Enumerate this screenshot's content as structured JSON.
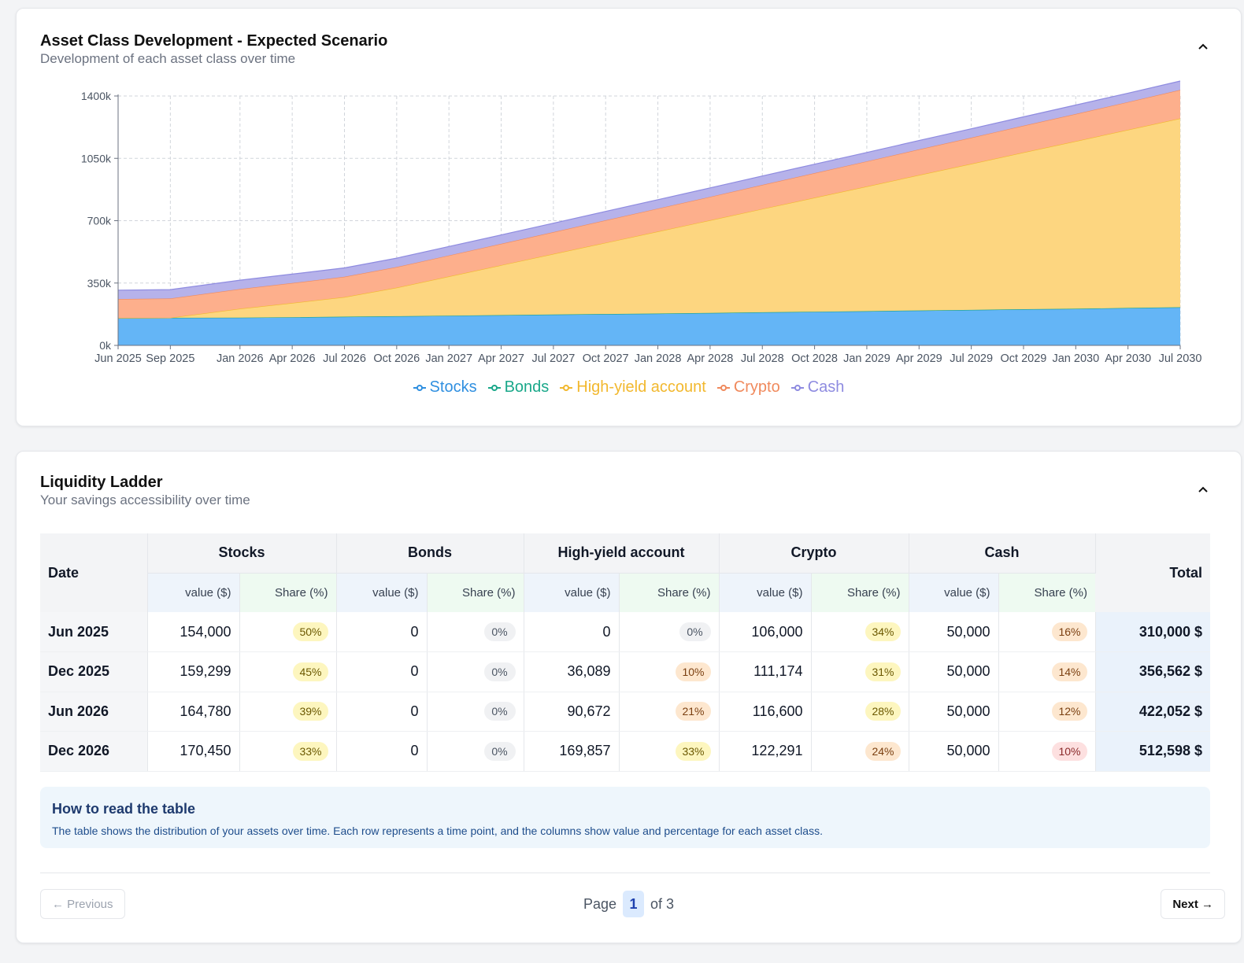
{
  "chart_card": {
    "title": "Asset Class Development - Expected Scenario",
    "subtitle": "Development of each asset class over time"
  },
  "chart_data": {
    "type": "area",
    "stacked": true,
    "x_labels": [
      "Jun 2025",
      "Sep 2025",
      "Jan 2026",
      "Apr 2026",
      "Jul 2026",
      "Oct 2026",
      "Jan 2027",
      "Apr 2027",
      "Jul 2027",
      "Oct 2027",
      "Jan 2028",
      "Apr 2028",
      "Jul 2028",
      "Oct 2028",
      "Jan 2029",
      "Apr 2029",
      "Jul 2029",
      "Oct 2029",
      "Jan 2030",
      "Apr 2030",
      "Jul 2030"
    ],
    "x_months": [
      0,
      3,
      7,
      10,
      13,
      16,
      19,
      22,
      25,
      28,
      31,
      34,
      37,
      40,
      43,
      46,
      49,
      52,
      55,
      58,
      61
    ],
    "ylim": [
      0,
      1400000
    ],
    "y_ticks": [
      0,
      350000,
      700000,
      1050000,
      1400000
    ],
    "y_tick_labels": [
      "0k",
      "350k",
      "700k",
      "1050k",
      "1400k"
    ],
    "grid": true,
    "legend": "bottom",
    "series": [
      {
        "name": "Stocks",
        "color": "#2f8fe0",
        "fill": "#64b5f6",
        "values": [
          154000,
          155000,
          156000,
          158000,
          161000,
          164000,
          167000,
          170000,
          173000,
          176000,
          179000,
          182000,
          186000,
          189000,
          192000,
          196000,
          199000,
          203000,
          206000,
          210000,
          214000
        ]
      },
      {
        "name": "Bonds",
        "color": "#1aa88a",
        "fill": "#3cc5a1",
        "values": [
          0,
          0,
          0,
          0,
          0,
          0,
          0,
          0,
          0,
          0,
          0,
          0,
          0,
          0,
          0,
          0,
          0,
          0,
          0,
          0,
          0
        ]
      },
      {
        "name": "High-yield account",
        "color": "#f2b82e",
        "fill": "#fdd680",
        "values": [
          0,
          0,
          50000,
          80000,
          110000,
          160000,
          220000,
          280000,
          340000,
          400000,
          460000,
          520000,
          580000,
          640000,
          700000,
          760000,
          820000,
          880000,
          940000,
          1000000,
          1060000
        ]
      },
      {
        "name": "Crypto",
        "color": "#f08a5d",
        "fill": "#fdaf8c",
        "values": [
          106000,
          108000,
          110000,
          112000,
          114000,
          116000,
          118000,
          120000,
          123000,
          126000,
          129000,
          132000,
          135000,
          138000,
          141000,
          144000,
          147000,
          150000,
          153000,
          156000,
          160000
        ]
      },
      {
        "name": "Cash",
        "color": "#8e8be0",
        "fill": "#b6b2ea",
        "values": [
          50000,
          50000,
          50000,
          50000,
          50000,
          50000,
          50000,
          50000,
          50000,
          50000,
          50000,
          50000,
          50000,
          50000,
          50000,
          50000,
          50000,
          50000,
          50000,
          50000,
          50000
        ]
      }
    ]
  },
  "ladder_card": {
    "title": "Liquidity Ladder",
    "subtitle": "Your savings accessibility over time",
    "headers": {
      "date": "Date",
      "groups": [
        "Stocks",
        "Bonds",
        "High-yield account",
        "Crypto",
        "Cash"
      ],
      "value": "value ($)",
      "share": "Share (%)",
      "total": "Total"
    },
    "rows": [
      {
        "date": "Jun 2025",
        "cells": [
          [
            "154,000",
            "50%",
            "yellow"
          ],
          [
            "0",
            "0%",
            "gray"
          ],
          [
            "0",
            "0%",
            "gray"
          ],
          [
            "106,000",
            "34%",
            "yellow"
          ],
          [
            "50,000",
            "16%",
            "orange"
          ]
        ],
        "total": "310,000 $"
      },
      {
        "date": "Dec 2025",
        "cells": [
          [
            "159,299",
            "45%",
            "yellow"
          ],
          [
            "0",
            "0%",
            "gray"
          ],
          [
            "36,089",
            "10%",
            "orange"
          ],
          [
            "111,174",
            "31%",
            "yellow"
          ],
          [
            "50,000",
            "14%",
            "orange"
          ]
        ],
        "total": "356,562 $"
      },
      {
        "date": "Jun 2026",
        "cells": [
          [
            "164,780",
            "39%",
            "yellow"
          ],
          [
            "0",
            "0%",
            "gray"
          ],
          [
            "90,672",
            "21%",
            "orange"
          ],
          [
            "116,600",
            "28%",
            "yellow"
          ],
          [
            "50,000",
            "12%",
            "orange"
          ]
        ],
        "total": "422,052 $"
      },
      {
        "date": "Dec 2026",
        "cells": [
          [
            "170,450",
            "33%",
            "yellow"
          ],
          [
            "0",
            "0%",
            "gray"
          ],
          [
            "169,857",
            "33%",
            "yellow"
          ],
          [
            "122,291",
            "24%",
            "orange"
          ],
          [
            "50,000",
            "10%",
            "red"
          ]
        ],
        "total": "512,598 $"
      }
    ],
    "info": {
      "title": "How to read the table",
      "text": "The table shows the distribution of your assets over time. Each row represents a time point, and the columns show value and percentage for each asset class."
    },
    "pager": {
      "prev": "← Previous",
      "page_label": "Page",
      "current_page": "1",
      "of_label": "of 3",
      "next": "Next →"
    }
  }
}
